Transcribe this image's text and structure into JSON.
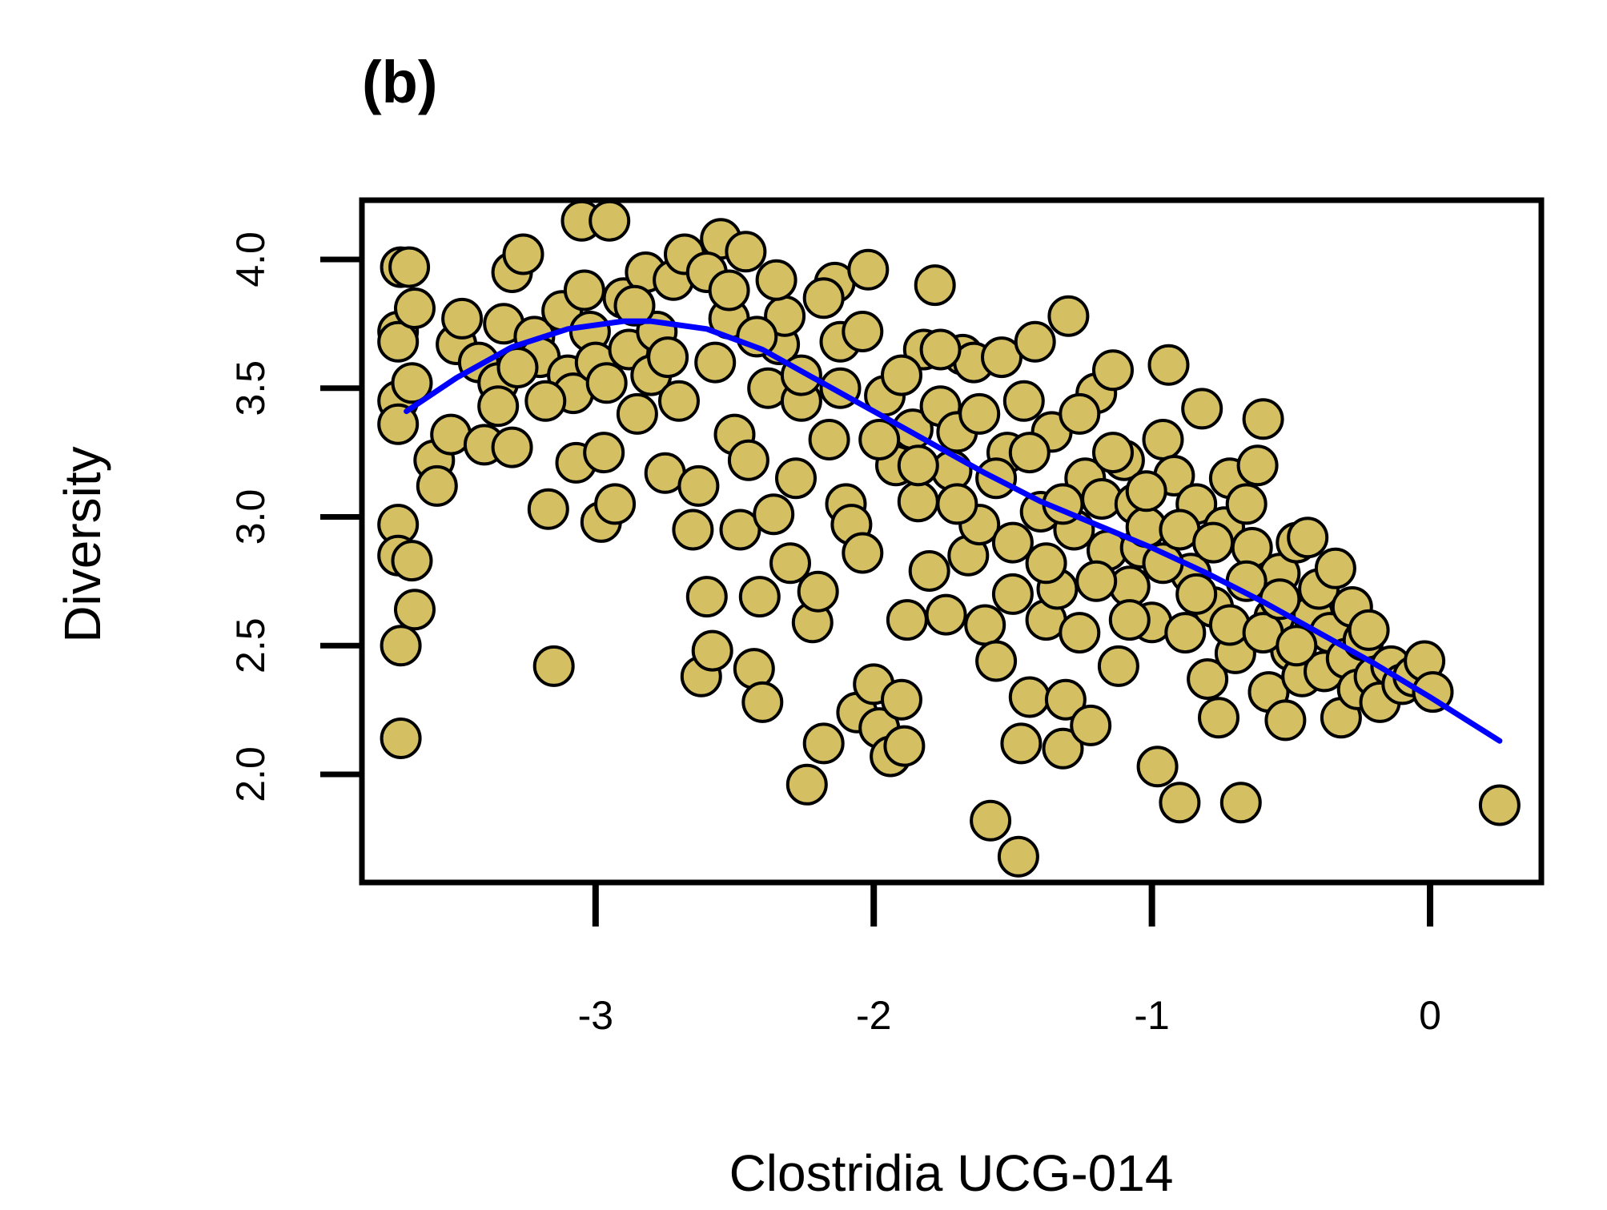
{
  "colors": {
    "point_fill": "#D4C062",
    "point_stroke": "#000000",
    "trend": "#0000FF",
    "axis": "#000000",
    "background": "#FFFFFF"
  },
  "chart_data": {
    "type": "scatter",
    "panel_label": "(b)",
    "xlabel": "Clostridia UCG-014",
    "ylabel": "Diversity",
    "xlim": [
      -3.84,
      0.4
    ],
    "ylim": [
      1.58,
      4.23
    ],
    "xticks": [
      -3,
      -2,
      -1,
      0
    ],
    "xtick_labels": [
      "-3",
      "-2",
      "-1",
      "0"
    ],
    "yticks": [
      2.0,
      2.5,
      3.0,
      3.5,
      4.0
    ],
    "ytick_labels": [
      "2.0",
      "2.5",
      "3.0",
      "3.5",
      "4.0"
    ],
    "grid": false,
    "legend": "none",
    "points": [
      [
        -3.7,
        3.97
      ],
      [
        -3.67,
        3.97
      ],
      [
        -3.71,
        3.72
      ],
      [
        -3.71,
        3.68
      ],
      [
        -3.71,
        3.45
      ],
      [
        -3.71,
        3.36
      ],
      [
        -3.65,
        3.81
      ],
      [
        -3.66,
        3.52
      ],
      [
        -3.71,
        2.97
      ],
      [
        -3.71,
        2.85
      ],
      [
        -3.66,
        2.83
      ],
      [
        -3.65,
        2.64
      ],
      [
        -3.7,
        2.5
      ],
      [
        -3.7,
        2.14
      ],
      [
        -3.58,
        3.22
      ],
      [
        -3.57,
        3.12
      ],
      [
        -3.52,
        3.32
      ],
      [
        -3.5,
        3.67
      ],
      [
        -3.48,
        3.77
      ],
      [
        -3.42,
        3.6
      ],
      [
        -3.4,
        3.28
      ],
      [
        -3.35,
        3.52
      ],
      [
        -3.35,
        3.43
      ],
      [
        -3.33,
        3.75
      ],
      [
        -3.3,
        3.95
      ],
      [
        -3.3,
        3.27
      ],
      [
        -3.26,
        4.02
      ],
      [
        -3.22,
        3.7
      ],
      [
        -3.2,
        3.62
      ],
      [
        -3.17,
        3.03
      ],
      [
        -3.15,
        2.42
      ],
      [
        -3.12,
        3.8
      ],
      [
        -3.1,
        3.55
      ],
      [
        -3.08,
        3.48
      ],
      [
        -3.07,
        3.21
      ],
      [
        -3.05,
        4.15
      ],
      [
        -3.02,
        3.72
      ],
      [
        -3.0,
        3.6
      ],
      [
        -2.98,
        2.98
      ],
      [
        -2.97,
        3.25
      ],
      [
        -2.95,
        4.15
      ],
      [
        -2.93,
        3.05
      ],
      [
        -2.9,
        3.85
      ],
      [
        -2.88,
        3.65
      ],
      [
        -2.85,
        3.4
      ],
      [
        -2.82,
        3.95
      ],
      [
        -2.8,
        3.55
      ],
      [
        -2.78,
        3.72
      ],
      [
        -2.75,
        3.17
      ],
      [
        -2.72,
        3.92
      ],
      [
        -2.7,
        3.45
      ],
      [
        -2.68,
        4.02
      ],
      [
        -2.65,
        2.95
      ],
      [
        -2.63,
        3.12
      ],
      [
        -2.62,
        2.38
      ],
      [
        -2.6,
        2.69
      ],
      [
        -2.58,
        2.48
      ],
      [
        -2.57,
        3.6
      ],
      [
        -2.55,
        4.08
      ],
      [
        -2.52,
        3.77
      ],
      [
        -2.5,
        3.32
      ],
      [
        -2.48,
        2.95
      ],
      [
        -2.46,
        4.03
      ],
      [
        -2.45,
        3.22
      ],
      [
        -2.43,
        2.41
      ],
      [
        -2.41,
        2.69
      ],
      [
        -2.4,
        2.28
      ],
      [
        -2.38,
        3.5
      ],
      [
        -2.36,
        3.01
      ],
      [
        -2.34,
        3.67
      ],
      [
        -2.32,
        3.78
      ],
      [
        -2.3,
        2.82
      ],
      [
        -2.28,
        3.15
      ],
      [
        -2.26,
        3.45
      ],
      [
        -2.24,
        1.96
      ],
      [
        -2.22,
        2.59
      ],
      [
        -2.2,
        2.71
      ],
      [
        -2.18,
        2.12
      ],
      [
        -2.16,
        3.3
      ],
      [
        -2.14,
        3.91
      ],
      [
        -2.12,
        3.68
      ],
      [
        -2.1,
        3.05
      ],
      [
        -2.08,
        2.97
      ],
      [
        -2.06,
        2.24
      ],
      [
        -2.04,
        2.86
      ],
      [
        -2.02,
        3.96
      ],
      [
        -2.0,
        2.35
      ],
      [
        -1.98,
        2.18
      ],
      [
        -1.96,
        3.47
      ],
      [
        -1.94,
        2.07
      ],
      [
        -1.92,
        3.2
      ],
      [
        -1.9,
        2.29
      ],
      [
        -1.89,
        2.11
      ],
      [
        -1.88,
        2.6
      ],
      [
        -1.86,
        3.34
      ],
      [
        -1.84,
        3.06
      ],
      [
        -1.82,
        3.65
      ],
      [
        -1.8,
        2.79
      ],
      [
        -1.78,
        3.9
      ],
      [
        -1.76,
        3.43
      ],
      [
        -1.74,
        2.62
      ],
      [
        -1.72,
        3.18
      ],
      [
        -1.7,
        3.33
      ],
      [
        -1.68,
        3.63
      ],
      [
        -1.66,
        2.85
      ],
      [
        -1.64,
        3.6
      ],
      [
        -1.62,
        2.97
      ],
      [
        -1.6,
        2.58
      ],
      [
        -1.58,
        1.82
      ],
      [
        -1.56,
        2.44
      ],
      [
        -1.54,
        3.62
      ],
      [
        -1.52,
        3.25
      ],
      [
        -1.5,
        2.7
      ],
      [
        -1.48,
        1.68
      ],
      [
        -1.47,
        2.12
      ],
      [
        -1.46,
        3.45
      ],
      [
        -1.44,
        2.3
      ],
      [
        -1.42,
        3.68
      ],
      [
        -1.4,
        3.02
      ],
      [
        -1.38,
        2.6
      ],
      [
        -1.36,
        3.33
      ],
      [
        -1.34,
        2.72
      ],
      [
        -1.32,
        2.1
      ],
      [
        -1.31,
        2.29
      ],
      [
        -1.3,
        3.78
      ],
      [
        -1.28,
        2.95
      ],
      [
        -1.26,
        2.55
      ],
      [
        -1.24,
        3.15
      ],
      [
        -1.22,
        2.19
      ],
      [
        -1.2,
        3.48
      ],
      [
        -1.18,
        3.07
      ],
      [
        -1.16,
        2.87
      ],
      [
        -1.14,
        3.57
      ],
      [
        -1.12,
        2.42
      ],
      [
        -1.1,
        3.22
      ],
      [
        -1.08,
        2.73
      ],
      [
        -1.06,
        3.05
      ],
      [
        -1.04,
        2.88
      ],
      [
        -1.02,
        2.96
      ],
      [
        -1.0,
        2.59
      ],
      [
        -0.98,
        2.03
      ],
      [
        -0.96,
        3.3
      ],
      [
        -0.94,
        3.59
      ],
      [
        -0.92,
        3.16
      ],
      [
        -0.9,
        1.89
      ],
      [
        -0.88,
        2.55
      ],
      [
        -0.86,
        2.78
      ],
      [
        -0.84,
        3.05
      ],
      [
        -0.82,
        3.42
      ],
      [
        -0.8,
        2.37
      ],
      [
        -0.78,
        2.65
      ],
      [
        -0.76,
        2.22
      ],
      [
        -0.74,
        2.96
      ],
      [
        -0.72,
        3.15
      ],
      [
        -0.7,
        2.47
      ],
      [
        -0.68,
        1.89
      ],
      [
        -0.66,
        3.05
      ],
      [
        -0.64,
        2.88
      ],
      [
        -0.62,
        3.2
      ],
      [
        -0.6,
        3.38
      ],
      [
        -0.58,
        2.32
      ],
      [
        -0.56,
        2.61
      ],
      [
        -0.54,
        2.78
      ],
      [
        -0.52,
        2.21
      ],
      [
        -0.5,
        2.48
      ],
      [
        -0.48,
        2.9
      ],
      [
        -0.46,
        2.38
      ],
      [
        -0.44,
        2.92
      ],
      [
        -0.42,
        2.62
      ],
      [
        -0.4,
        2.72
      ],
      [
        -0.38,
        2.4
      ],
      [
        -0.36,
        2.55
      ],
      [
        -0.34,
        2.8
      ],
      [
        -0.32,
        2.22
      ],
      [
        -0.3,
        2.45
      ],
      [
        -0.28,
        2.65
      ],
      [
        -0.26,
        2.33
      ],
      [
        -0.24,
        2.52
      ],
      [
        -0.22,
        2.56
      ],
      [
        -0.2,
        2.38
      ],
      [
        -0.18,
        2.28
      ],
      [
        -0.14,
        2.42
      ],
      [
        -0.1,
        2.35
      ],
      [
        -0.06,
        2.38
      ],
      [
        -0.02,
        2.44
      ],
      [
        0.01,
        2.32
      ],
      [
        0.25,
        1.88
      ],
      [
        -3.28,
        3.58
      ],
      [
        -3.18,
        3.45
      ],
      [
        -3.04,
        3.88
      ],
      [
        -2.96,
        3.52
      ],
      [
        -2.86,
        3.82
      ],
      [
        -2.74,
        3.62
      ],
      [
        -2.6,
        3.95
      ],
      [
        -2.52,
        3.88
      ],
      [
        -2.42,
        3.7
      ],
      [
        -2.35,
        3.92
      ],
      [
        -2.26,
        3.55
      ],
      [
        -2.18,
        3.85
      ],
      [
        -2.12,
        3.5
      ],
      [
        -2.04,
        3.72
      ],
      [
        -1.98,
        3.3
      ],
      [
        -1.9,
        3.55
      ],
      [
        -1.84,
        3.2
      ],
      [
        -1.76,
        3.65
      ],
      [
        -1.7,
        3.05
      ],
      [
        -1.62,
        3.4
      ],
      [
        -1.56,
        3.15
      ],
      [
        -1.5,
        2.9
      ],
      [
        -1.44,
        3.25
      ],
      [
        -1.38,
        2.82
      ],
      [
        -1.32,
        3.05
      ],
      [
        -1.26,
        3.4
      ],
      [
        -1.2,
        2.75
      ],
      [
        -1.14,
        3.25
      ],
      [
        -1.08,
        2.6
      ],
      [
        -1.02,
        3.1
      ],
      [
        -0.96,
        2.82
      ],
      [
        -0.9,
        2.95
      ],
      [
        -0.84,
        2.7
      ],
      [
        -0.78,
        2.9
      ],
      [
        -0.72,
        2.58
      ],
      [
        -0.66,
        2.75
      ],
      [
        -0.6,
        2.55
      ],
      [
        -0.54,
        2.68
      ],
      [
        -0.48,
        2.5
      ]
    ],
    "trend_line": {
      "x": [
        -3.68,
        -3.5,
        -3.3,
        -3.1,
        -2.9,
        -2.8,
        -2.6,
        -2.4,
        -2.2,
        -2.0,
        -1.8,
        -1.6,
        -1.4,
        -1.2,
        -1.0,
        -0.8,
        -0.6,
        -0.4,
        -0.2,
        0.0,
        0.25
      ],
      "y": [
        3.41,
        3.54,
        3.66,
        3.73,
        3.76,
        3.76,
        3.73,
        3.65,
        3.53,
        3.41,
        3.29,
        3.17,
        3.06,
        2.97,
        2.88,
        2.78,
        2.67,
        2.55,
        2.43,
        2.3,
        2.13
      ]
    }
  }
}
